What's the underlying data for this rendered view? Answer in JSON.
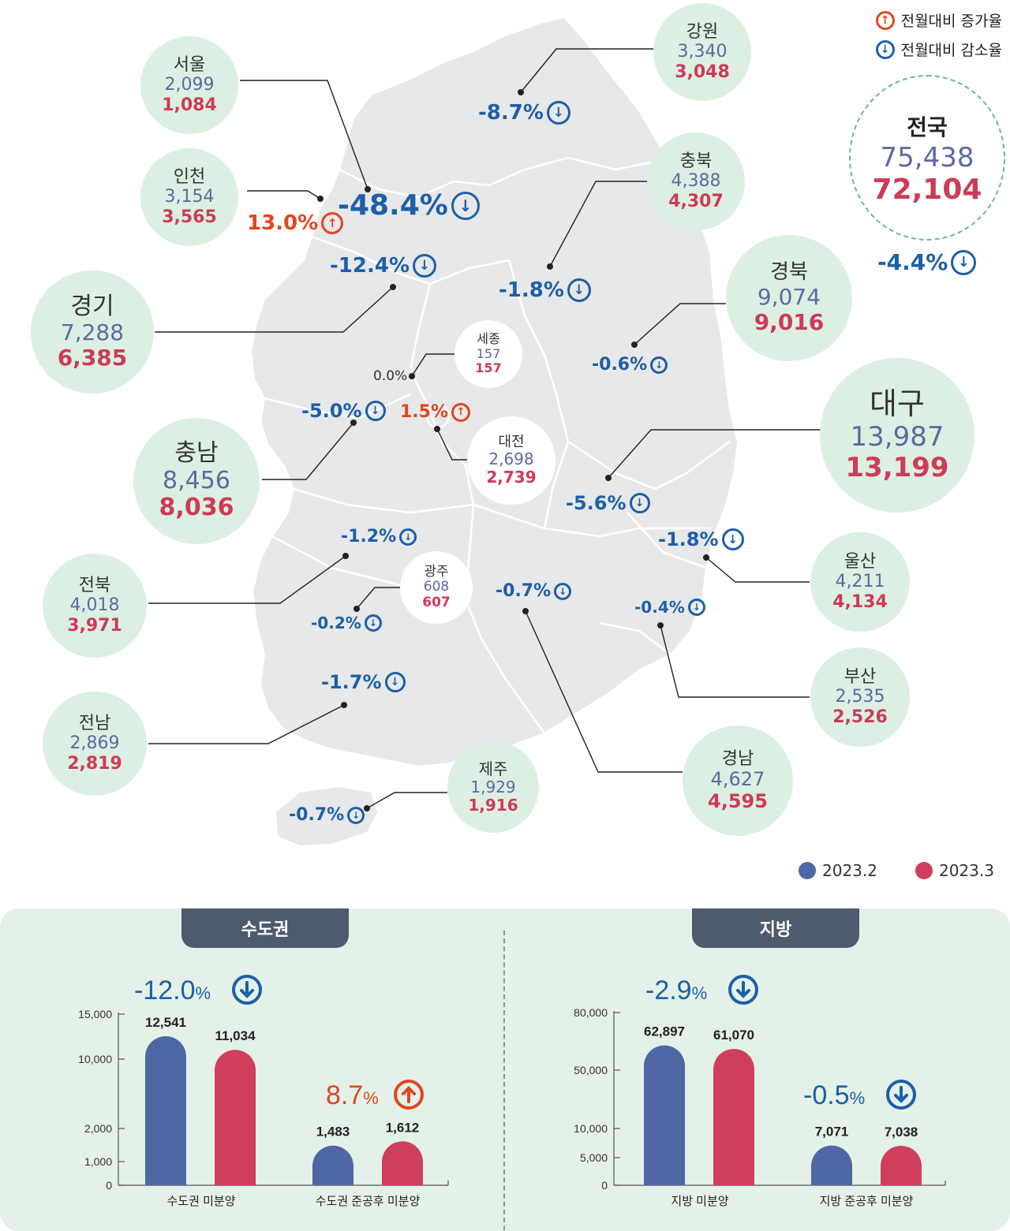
{
  "legend": {
    "increase_label": "전월대비 증가율",
    "decrease_label": "전월대비 감소율",
    "increase_color": "#e0461f",
    "decrease_color": "#1d5fa8"
  },
  "national": {
    "name": "전국",
    "feb": "75,438",
    "mar": "72,104",
    "change": "-4.4%"
  },
  "regions": [
    {
      "name": "서울",
      "feb": "2,099",
      "mar": "1,084",
      "change": "-48.4%",
      "dir": "down"
    },
    {
      "name": "인천",
      "feb": "3,154",
      "mar": "3,565",
      "change": "13.0%",
      "dir": "up"
    },
    {
      "name": "경기",
      "feb": "7,288",
      "mar": "6,385",
      "change": "-12.4%",
      "dir": "down"
    },
    {
      "name": "강원",
      "feb": "3,340",
      "mar": "3,048",
      "change": "-8.7%",
      "dir": "down"
    },
    {
      "name": "충북",
      "feb": "4,388",
      "mar": "4,307",
      "change": "-1.8%",
      "dir": "down"
    },
    {
      "name": "경북",
      "feb": "9,074",
      "mar": "9,016",
      "change": "-0.6%",
      "dir": "down"
    },
    {
      "name": "세종",
      "feb": "157",
      "mar": "157",
      "change": "0.0%",
      "dir": "flat"
    },
    {
      "name": "대전",
      "feb": "2,698",
      "mar": "2,739",
      "change": "1.5%",
      "dir": "up"
    },
    {
      "name": "충남",
      "feb": "8,456",
      "mar": "8,036",
      "change": "-5.0%",
      "dir": "down"
    },
    {
      "name": "대구",
      "feb": "13,987",
      "mar": "13,199",
      "change": "-5.6%",
      "dir": "down"
    },
    {
      "name": "전북",
      "feb": "4,018",
      "mar": "3,971",
      "change": "-1.2%",
      "dir": "down"
    },
    {
      "name": "광주",
      "feb": "608",
      "mar": "607",
      "change": "-0.2%",
      "dir": "down"
    },
    {
      "name": "울산",
      "feb": "4,211",
      "mar": "4,134",
      "change": "-1.8%",
      "dir": "down"
    },
    {
      "name": "부산",
      "feb": "2,535",
      "mar": "2,526",
      "change": "-0.4%",
      "dir": "down"
    },
    {
      "name": "전남",
      "feb": "2,869",
      "mar": "2,819",
      "change": "-1.7%",
      "dir": "down"
    },
    {
      "name": "경남",
      "feb": "4,627",
      "mar": "4,595",
      "change": "-0.7%",
      "dir": "down"
    },
    {
      "name": "제주",
      "feb": "1,929",
      "mar": "1,916",
      "change": "-0.7%",
      "dir": "down"
    }
  ],
  "series_legend": [
    {
      "name": "2023.2",
      "color": "#4f67a5"
    },
    {
      "name": "2023.3",
      "color": "#cf3f5b"
    }
  ],
  "panels": {
    "capital_title": "수도권",
    "local_title": "지방"
  },
  "chart_data": [
    {
      "type": "bar",
      "title": "수도권",
      "categories": [
        "수도권 미분양",
        "수도권 준공후 미분양"
      ],
      "series": [
        {
          "name": "2023.2",
          "values": [
            12541,
            1483
          ]
        },
        {
          "name": "2023.3",
          "values": [
            11034,
            1612
          ]
        }
      ],
      "value_labels": [
        [
          "12,541",
          "11,034"
        ],
        [
          "1,483",
          "1,612"
        ]
      ],
      "changes": [
        {
          "text": "-12.0",
          "dir": "down"
        },
        {
          "text": "8.7",
          "dir": "up"
        }
      ],
      "ylim": [
        0,
        15000
      ],
      "y_ticks": [
        0,
        1000,
        2000,
        10000,
        15000
      ],
      "y_tick_labels": [
        "0",
        "1,000",
        "2,000",
        "10,000",
        "15,000"
      ],
      "grid": false
    },
    {
      "type": "bar",
      "title": "지방",
      "categories": [
        "지방 미분양",
        "지방 준공후 미분양"
      ],
      "series": [
        {
          "name": "2023.2",
          "values": [
            62897,
            7071
          ]
        },
        {
          "name": "2023.3",
          "values": [
            61070,
            7038
          ]
        }
      ],
      "value_labels": [
        [
          "62,897",
          "61,070"
        ],
        [
          "7,071",
          "7,038"
        ]
      ],
      "changes": [
        {
          "text": "-2.9",
          "dir": "down"
        },
        {
          "text": "-0.5",
          "dir": "down"
        }
      ],
      "ylim": [
        0,
        80000
      ],
      "y_ticks": [
        0,
        5000,
        10000,
        50000,
        80000
      ],
      "y_tick_labels": [
        "0",
        "5,000",
        "10,000",
        "50,000",
        "80,000"
      ],
      "grid": false
    }
  ]
}
